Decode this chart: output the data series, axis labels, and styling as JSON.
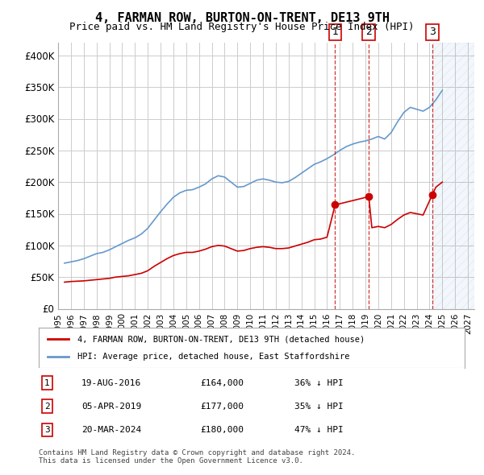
{
  "title": "4, FARMAN ROW, BURTON-ON-TRENT, DE13 9TH",
  "subtitle": "Price paid vs. HM Land Registry's House Price Index (HPI)",
  "ylabel_ticks": [
    "£0",
    "£50K",
    "£100K",
    "£150K",
    "£200K",
    "£250K",
    "£300K",
    "£350K",
    "£400K"
  ],
  "ytick_values": [
    0,
    50000,
    100000,
    150000,
    200000,
    250000,
    300000,
    350000,
    400000
  ],
  "ylim": [
    0,
    420000
  ],
  "xlim_start": 1995.0,
  "xlim_end": 2027.5,
  "legend_red": "4, FARMAN ROW, BURTON-ON-TRENT, DE13 9TH (detached house)",
  "legend_blue": "HPI: Average price, detached house, East Staffordshire",
  "sales": [
    {
      "num": 1,
      "date_str": "19-AUG-2016",
      "price_str": "£164,000",
      "pct_str": "36% ↓ HPI",
      "year": 2016.63
    },
    {
      "num": 2,
      "date_str": "05-APR-2019",
      "price_str": "£177,000",
      "pct_str": "35% ↓ HPI",
      "year": 2019.26
    },
    {
      "num": 3,
      "date_str": "20-MAR-2024",
      "price_str": "£180,000",
      "pct_str": "47% ↓ HPI",
      "year": 2024.22
    }
  ],
  "sale_prices": [
    164000,
    177000,
    180000
  ],
  "footnote": "Contains HM Land Registry data © Crown copyright and database right 2024.\nThis data is licensed under the Open Government Licence v3.0.",
  "hpi_color": "#6699cc",
  "property_color": "#cc0000",
  "hpi_data": {
    "years": [
      1995.5,
      1996.0,
      1996.5,
      1997.0,
      1997.5,
      1998.0,
      1998.5,
      1999.0,
      1999.5,
      2000.0,
      2000.5,
      2001.0,
      2001.5,
      2002.0,
      2002.5,
      2003.0,
      2003.5,
      2004.0,
      2004.5,
      2005.0,
      2005.5,
      2006.0,
      2006.5,
      2007.0,
      2007.5,
      2008.0,
      2008.5,
      2009.0,
      2009.5,
      2010.0,
      2010.5,
      2011.0,
      2011.5,
      2012.0,
      2012.5,
      2013.0,
      2013.5,
      2014.0,
      2014.5,
      2015.0,
      2015.5,
      2016.0,
      2016.5,
      2017.0,
      2017.5,
      2018.0,
      2018.5,
      2019.0,
      2019.5,
      2020.0,
      2020.5,
      2021.0,
      2021.5,
      2022.0,
      2022.5,
      2023.0,
      2023.5,
      2024.0,
      2024.5,
      2025.0
    ],
    "values": [
      72000,
      74000,
      76000,
      79000,
      83000,
      87000,
      89000,
      93000,
      98000,
      103000,
      108000,
      112000,
      118000,
      127000,
      140000,
      153000,
      165000,
      176000,
      183000,
      187000,
      188000,
      192000,
      197000,
      205000,
      210000,
      208000,
      200000,
      192000,
      193000,
      198000,
      203000,
      205000,
      203000,
      200000,
      199000,
      201000,
      207000,
      214000,
      221000,
      228000,
      232000,
      237000,
      243000,
      250000,
      256000,
      260000,
      263000,
      265000,
      268000,
      272000,
      268000,
      278000,
      295000,
      310000,
      318000,
      315000,
      312000,
      318000,
      330000,
      345000
    ]
  },
  "property_data": {
    "years": [
      1995.5,
      1996.0,
      1996.5,
      1997.0,
      1997.5,
      1998.0,
      1998.5,
      1999.0,
      1999.5,
      2000.0,
      2000.5,
      2001.0,
      2001.5,
      2002.0,
      2002.5,
      2003.0,
      2003.5,
      2004.0,
      2004.5,
      2005.0,
      2005.5,
      2006.0,
      2006.5,
      2007.0,
      2007.5,
      2008.0,
      2008.5,
      2009.0,
      2009.5,
      2010.0,
      2010.5,
      2011.0,
      2011.5,
      2012.0,
      2012.5,
      2013.0,
      2013.5,
      2014.0,
      2014.5,
      2015.0,
      2015.5,
      2016.0,
      2016.63,
      2019.26,
      2019.5,
      2020.0,
      2020.5,
      2021.0,
      2021.5,
      2022.0,
      2022.5,
      2023.0,
      2023.5,
      2024.22,
      2024.5,
      2025.0
    ],
    "values": [
      42000,
      43000,
      43500,
      44000,
      45000,
      46000,
      47000,
      48000,
      50000,
      51000,
      52000,
      54000,
      56000,
      60000,
      67000,
      73000,
      79000,
      84000,
      87000,
      89000,
      89000,
      91000,
      94000,
      98000,
      100000,
      99000,
      95000,
      91000,
      92000,
      95000,
      97000,
      98000,
      97000,
      95000,
      95000,
      96000,
      99000,
      102000,
      105000,
      109000,
      110000,
      113000,
      164000,
      177000,
      128000,
      130000,
      128000,
      133000,
      141000,
      148000,
      152000,
      150000,
      148000,
      180000,
      192000,
      200000
    ]
  },
  "hatch_start": 2024.22,
  "background_color": "#ffffff",
  "grid_color": "#cccccc"
}
